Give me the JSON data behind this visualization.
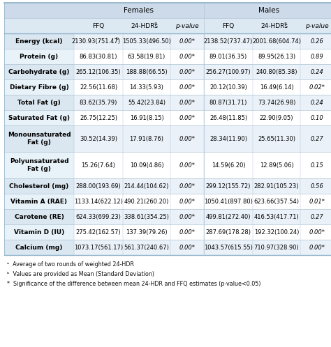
{
  "title_females": "Females",
  "title_males": "Males",
  "col_headers": [
    "FFQ",
    "24-HDRs",
    "p-value",
    "FFQ",
    "24-HDRs",
    "p-value"
  ],
  "row_labels": [
    "Energy (kcal)",
    "Protein (g)",
    "Carbohydrate (g)",
    "Dietary Fibre (g)",
    "Total Fat (g)",
    "Saturated Fat (g)",
    "Monounsaturated\nFat (g)",
    "Polyunsaturated\nFat (g)",
    "Cholesterol (mg)",
    "Vitamin A (RAE)",
    "Carotene (RE)",
    "Vitamin D (IU)",
    "Calcium (mg)"
  ],
  "data": [
    [
      "2130.93(751.47)",
      "1505.33(496.50)",
      "0.00*",
      "2138.52(737.47)",
      "2001.68(604.74)",
      "0.26"
    ],
    [
      "86.83(30.81)",
      "63.58(19.81)",
      "0.00*",
      "89.01(36.35)",
      "89.95(26.13)",
      "0.89"
    ],
    [
      "265.12(106.35)",
      "188.88(66.55)",
      "0.00*",
      "256.27(100.97)",
      "240.80(85.38)",
      "0.24"
    ],
    [
      "22.56(11.68)",
      "14.33(5.93)",
      "0.00*",
      "20.12(10.39)",
      "16.49(6.14)",
      "0.02*"
    ],
    [
      "83.62(35.79)",
      "55.42(23.84)",
      "0.00*",
      "80.87(31.71)",
      "73.74(26.98)",
      "0.24"
    ],
    [
      "26.75(12.25)",
      "16.91(8.15)",
      "0.00*",
      "26.48(11.85)",
      "22.90(9.05)",
      "0.10"
    ],
    [
      "30.52(14.39)",
      "17.91(8.76)",
      "0.00*",
      "28.34(11.90)",
      "25.65(11.30)",
      "0.27"
    ],
    [
      "15.26(7.64)",
      "10.09(4.86)",
      "0.00*",
      "14.59(6.20)",
      "12.89(5.06)",
      "0.15"
    ],
    [
      "288.00(193.69)",
      "214.44(104.62)",
      "0.00*",
      "299.12(155.72)",
      "282.91(105.23)",
      "0.56"
    ],
    [
      "1133.14(622.12)",
      "490.21(260.20)",
      "0.00*",
      "1050.41(897.80)",
      "623.66(357.54)",
      "0.01*"
    ],
    [
      "624.33(699.23)",
      "338.61(354.25)",
      "0.00*",
      "499.81(272.40)",
      "416.53(417.71)",
      "0.27"
    ],
    [
      "275.42(162.57)",
      "137.39(79.26)",
      "0.00*",
      "287.69(178.28)",
      "192.32(100.24)",
      "0.00*"
    ],
    [
      "1073.17(561.17)",
      "561.37(240.67)",
      "0.00*",
      "1043.57(615.55)",
      "710.97(328.90)",
      "0.00*"
    ]
  ],
  "footnotes": [
    "a  Average of two rounds of weighted 24-HDR",
    "b  Values are provided as Mean (Standard Deviation)",
    "*  Significance of the difference between mean 24-HDR and FFQ estimates (p-value<0.05)"
  ],
  "header_bg": "#cddaea",
  "subheader_bg": "#dce8f2",
  "row_bg_light": "#eaf1f8",
  "row_bg_white": "#ffffff",
  "label_bg_light": "#dae6f0",
  "label_bg_white": "#e8f2f9",
  "border_color": "#b0c4d4",
  "thick_border": "#8aafc8",
  "text_color": "#000000",
  "figsize": [
    4.74,
    4.98
  ],
  "dpi": 100
}
